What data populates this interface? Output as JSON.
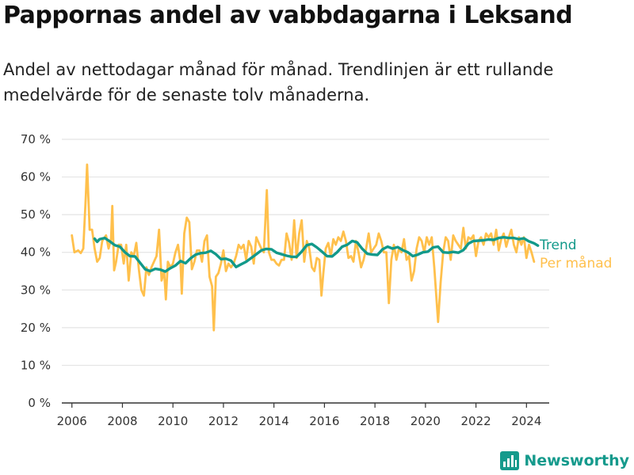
{
  "title": "Pappornas andel av vabbdagarna i Leksand",
  "subtitle": "Andel av nettodagar månad för månad. Trendlinjen är ett rullande medelvärde för de senaste tolv månaderna.",
  "brand": {
    "name": "Newsworthy",
    "icon": "newsworthy-logo-icon"
  },
  "colors": {
    "monthly": "#ffc04c",
    "trend": "#12998a",
    "grid": "#e4e4e4",
    "axis": "#333333"
  },
  "chart_data": {
    "type": "line",
    "title": "Pappornas andel av vabbdagarna i Leksand",
    "xlabel": "",
    "ylabel": "",
    "xlim": [
      2005.6,
      2024.9
    ],
    "ylim": [
      0,
      70
    ],
    "grid": true,
    "legend": "right",
    "x_ticks": [
      {
        "value": 2006,
        "label": "2006"
      },
      {
        "value": 2008,
        "label": "2008"
      },
      {
        "value": 2010,
        "label": "2010"
      },
      {
        "value": 2012,
        "label": "2012"
      },
      {
        "value": 2014,
        "label": "2014"
      },
      {
        "value": 2016,
        "label": "2016"
      },
      {
        "value": 2018,
        "label": "2018"
      },
      {
        "value": 2020,
        "label": "2020"
      },
      {
        "value": 2022,
        "label": "2022"
      },
      {
        "value": 2024,
        "label": "2024"
      }
    ],
    "y_ticks": [
      {
        "value": 0,
        "label": "0 %"
      },
      {
        "value": 10,
        "label": "10 %"
      },
      {
        "value": 20,
        "label": "20 %"
      },
      {
        "value": 30,
        "label": "30 %"
      },
      {
        "value": 40,
        "label": "40 %"
      },
      {
        "value": 50,
        "label": "50 %"
      },
      {
        "value": 60,
        "label": "60 %"
      },
      {
        "value": 70,
        "label": "70 %"
      }
    ],
    "series": [
      {
        "name": "Per månad",
        "color": "#ffc04c",
        "points": [
          [
            2006.0,
            44.5
          ],
          [
            2006.1,
            40
          ],
          [
            2006.25,
            40.5
          ],
          [
            2006.35,
            39.8
          ],
          [
            2006.45,
            41
          ],
          [
            2006.55,
            55
          ],
          [
            2006.6,
            63.3
          ],
          [
            2006.7,
            46
          ],
          [
            2006.8,
            46
          ],
          [
            2006.9,
            41
          ],
          [
            2007.0,
            37.5
          ],
          [
            2007.1,
            38.5
          ],
          [
            2007.2,
            43
          ],
          [
            2007.35,
            44.5
          ],
          [
            2007.45,
            41
          ],
          [
            2007.55,
            43.5
          ],
          [
            2007.6,
            52.3
          ],
          [
            2007.67,
            35.2
          ],
          [
            2007.75,
            37.5
          ],
          [
            2007.85,
            42
          ],
          [
            2007.95,
            42
          ],
          [
            2008.05,
            37
          ],
          [
            2008.15,
            42
          ],
          [
            2008.25,
            32.5
          ],
          [
            2008.35,
            40
          ],
          [
            2008.45,
            39
          ],
          [
            2008.55,
            42.5
          ],
          [
            2008.65,
            35.5
          ],
          [
            2008.75,
            30
          ],
          [
            2008.85,
            28.5
          ],
          [
            2008.95,
            36
          ],
          [
            2009.05,
            34
          ],
          [
            2009.15,
            36
          ],
          [
            2009.25,
            37.5
          ],
          [
            2009.35,
            39
          ],
          [
            2009.45,
            46
          ],
          [
            2009.55,
            32.5
          ],
          [
            2009.65,
            35
          ],
          [
            2009.72,
            27.5
          ],
          [
            2009.8,
            37.5
          ],
          [
            2009.9,
            36
          ],
          [
            2010.0,
            37
          ],
          [
            2010.1,
            40
          ],
          [
            2010.2,
            42
          ],
          [
            2010.3,
            37
          ],
          [
            2010.35,
            29
          ],
          [
            2010.45,
            45
          ],
          [
            2010.55,
            49.2
          ],
          [
            2010.65,
            48
          ],
          [
            2010.75,
            35.5
          ],
          [
            2010.85,
            37.5
          ],
          [
            2010.95,
            40.5
          ],
          [
            2011.05,
            40.5
          ],
          [
            2011.15,
            37.5
          ],
          [
            2011.25,
            43
          ],
          [
            2011.35,
            44.5
          ],
          [
            2011.45,
            33.5
          ],
          [
            2011.55,
            31
          ],
          [
            2011.62,
            19.3
          ],
          [
            2011.7,
            33.5
          ],
          [
            2011.8,
            34.5
          ],
          [
            2011.9,
            37
          ],
          [
            2012.0,
            40.5
          ],
          [
            2012.1,
            35
          ],
          [
            2012.2,
            37
          ],
          [
            2012.3,
            36
          ],
          [
            2012.4,
            37
          ],
          [
            2012.5,
            39
          ],
          [
            2012.6,
            42
          ],
          [
            2012.7,
            41
          ],
          [
            2012.8,
            42
          ],
          [
            2012.9,
            38
          ],
          [
            2013.0,
            43
          ],
          [
            2013.1,
            41.5
          ],
          [
            2013.2,
            37
          ],
          [
            2013.3,
            44
          ],
          [
            2013.4,
            42.5
          ],
          [
            2013.5,
            41
          ],
          [
            2013.6,
            40
          ],
          [
            2013.72,
            56.5
          ],
          [
            2013.8,
            40
          ],
          [
            2013.9,
            38
          ],
          [
            2014.0,
            38
          ],
          [
            2014.1,
            37
          ],
          [
            2014.2,
            36.5
          ],
          [
            2014.3,
            38
          ],
          [
            2014.4,
            38
          ],
          [
            2014.5,
            45
          ],
          [
            2014.6,
            42.5
          ],
          [
            2014.7,
            38
          ],
          [
            2014.8,
            48.5
          ],
          [
            2014.9,
            38.5
          ],
          [
            2015.0,
            45
          ],
          [
            2015.1,
            48.5
          ],
          [
            2015.2,
            37.5
          ],
          [
            2015.3,
            43
          ],
          [
            2015.4,
            41
          ],
          [
            2015.5,
            36
          ],
          [
            2015.6,
            35
          ],
          [
            2015.7,
            38.5
          ],
          [
            2015.8,
            38
          ],
          [
            2015.88,
            28.5
          ],
          [
            2015.95,
            34
          ],
          [
            2016.05,
            41
          ],
          [
            2016.15,
            42.5
          ],
          [
            2016.25,
            39
          ],
          [
            2016.35,
            43.5
          ],
          [
            2016.45,
            42
          ],
          [
            2016.55,
            44
          ],
          [
            2016.65,
            43
          ],
          [
            2016.75,
            45.5
          ],
          [
            2016.85,
            43
          ],
          [
            2016.95,
            38.5
          ],
          [
            2017.05,
            39
          ],
          [
            2017.15,
            37.5
          ],
          [
            2017.25,
            43
          ],
          [
            2017.35,
            40
          ],
          [
            2017.45,
            36
          ],
          [
            2017.55,
            38
          ],
          [
            2017.65,
            41
          ],
          [
            2017.75,
            45
          ],
          [
            2017.85,
            40
          ],
          [
            2017.95,
            41
          ],
          [
            2018.05,
            42
          ],
          [
            2018.15,
            45
          ],
          [
            2018.25,
            43
          ],
          [
            2018.35,
            40
          ],
          [
            2018.45,
            40
          ],
          [
            2018.55,
            26.5
          ],
          [
            2018.65,
            38
          ],
          [
            2018.75,
            42
          ],
          [
            2018.85,
            38
          ],
          [
            2018.95,
            41
          ],
          [
            2019.05,
            40
          ],
          [
            2019.15,
            43.5
          ],
          [
            2019.25,
            38
          ],
          [
            2019.35,
            39
          ],
          [
            2019.45,
            32.5
          ],
          [
            2019.55,
            35
          ],
          [
            2019.65,
            41
          ],
          [
            2019.75,
            44
          ],
          [
            2019.85,
            43
          ],
          [
            2019.95,
            40
          ],
          [
            2020.05,
            44
          ],
          [
            2020.15,
            42
          ],
          [
            2020.25,
            44
          ],
          [
            2020.35,
            36
          ],
          [
            2020.5,
            21.5
          ],
          [
            2020.6,
            32
          ],
          [
            2020.7,
            40
          ],
          [
            2020.8,
            44
          ],
          [
            2020.9,
            43
          ],
          [
            2021.0,
            38
          ],
          [
            2021.1,
            44.5
          ],
          [
            2021.2,
            43
          ],
          [
            2021.3,
            42
          ],
          [
            2021.4,
            41
          ],
          [
            2021.5,
            46.5
          ],
          [
            2021.6,
            41
          ],
          [
            2021.7,
            44
          ],
          [
            2021.8,
            43.5
          ],
          [
            2021.9,
            44.5
          ],
          [
            2022.0,
            39
          ],
          [
            2022.1,
            43
          ],
          [
            2022.2,
            44
          ],
          [
            2022.3,
            42
          ],
          [
            2022.4,
            45
          ],
          [
            2022.5,
            44
          ],
          [
            2022.6,
            45
          ],
          [
            2022.7,
            42
          ],
          [
            2022.8,
            46
          ],
          [
            2022.9,
            40.5
          ],
          [
            2023.0,
            43.5
          ],
          [
            2023.1,
            45
          ],
          [
            2023.2,
            41.5
          ],
          [
            2023.3,
            44
          ],
          [
            2023.4,
            46
          ],
          [
            2023.5,
            42
          ],
          [
            2023.6,
            40
          ],
          [
            2023.7,
            44
          ],
          [
            2023.8,
            42
          ],
          [
            2023.9,
            44
          ],
          [
            2024.0,
            38.5
          ],
          [
            2024.1,
            42
          ],
          [
            2024.2,
            40
          ],
          [
            2024.3,
            37.5
          ]
        ]
      },
      {
        "name": "Trend",
        "color": "#12998a",
        "points": [
          [
            2006.9,
            43.6
          ],
          [
            2007.0,
            42.8
          ],
          [
            2007.1,
            43.5
          ],
          [
            2007.3,
            43.8
          ],
          [
            2007.5,
            42.9
          ],
          [
            2007.7,
            41.9
          ],
          [
            2007.9,
            41.5
          ],
          [
            2008.1,
            40.0
          ],
          [
            2008.3,
            39.0
          ],
          [
            2008.5,
            38.9
          ],
          [
            2008.7,
            37.2
          ],
          [
            2008.9,
            35.5
          ],
          [
            2009.1,
            35.0
          ],
          [
            2009.3,
            35.6
          ],
          [
            2009.5,
            35.4
          ],
          [
            2009.7,
            34.9
          ],
          [
            2009.9,
            35.8
          ],
          [
            2010.1,
            36.5
          ],
          [
            2010.3,
            37.7
          ],
          [
            2010.5,
            37.1
          ],
          [
            2010.7,
            38.4
          ],
          [
            2010.9,
            39.4
          ],
          [
            2011.1,
            39.8
          ],
          [
            2011.3,
            39.9
          ],
          [
            2011.5,
            40.4
          ],
          [
            2011.7,
            39.5
          ],
          [
            2011.9,
            38.2
          ],
          [
            2012.1,
            38.3
          ],
          [
            2012.3,
            37.8
          ],
          [
            2012.5,
            36.1
          ],
          [
            2012.7,
            36.8
          ],
          [
            2012.9,
            37.5
          ],
          [
            2013.1,
            38.5
          ],
          [
            2013.3,
            39.5
          ],
          [
            2013.5,
            40.5
          ],
          [
            2013.7,
            40.9
          ],
          [
            2013.9,
            40.8
          ],
          [
            2014.1,
            39.9
          ],
          [
            2014.3,
            39.5
          ],
          [
            2014.5,
            39.1
          ],
          [
            2014.7,
            38.8
          ],
          [
            2014.9,
            38.8
          ],
          [
            2015.1,
            40.2
          ],
          [
            2015.3,
            41.9
          ],
          [
            2015.5,
            42.2
          ],
          [
            2015.7,
            41.3
          ],
          [
            2015.9,
            40.2
          ],
          [
            2016.1,
            39.0
          ],
          [
            2016.3,
            38.9
          ],
          [
            2016.5,
            40.0
          ],
          [
            2016.7,
            41.5
          ],
          [
            2016.9,
            42.0
          ],
          [
            2017.1,
            43.0
          ],
          [
            2017.3,
            42.6
          ],
          [
            2017.5,
            40.9
          ],
          [
            2017.7,
            39.6
          ],
          [
            2017.9,
            39.4
          ],
          [
            2018.1,
            39.3
          ],
          [
            2018.3,
            40.8
          ],
          [
            2018.5,
            41.5
          ],
          [
            2018.7,
            41.0
          ],
          [
            2018.9,
            41.4
          ],
          [
            2019.1,
            40.6
          ],
          [
            2019.3,
            40.0
          ],
          [
            2019.5,
            39.0
          ],
          [
            2019.7,
            39.4
          ],
          [
            2019.9,
            40.0
          ],
          [
            2020.1,
            40.2
          ],
          [
            2020.3,
            41.3
          ],
          [
            2020.5,
            41.5
          ],
          [
            2020.7,
            40.0
          ],
          [
            2020.9,
            39.9
          ],
          [
            2021.1,
            40.1
          ],
          [
            2021.3,
            39.9
          ],
          [
            2021.5,
            40.6
          ],
          [
            2021.7,
            42.3
          ],
          [
            2021.9,
            43.0
          ],
          [
            2022.1,
            43.1
          ],
          [
            2022.3,
            43.2
          ],
          [
            2022.5,
            43.4
          ],
          [
            2022.7,
            43.3
          ],
          [
            2022.9,
            43.8
          ],
          [
            2023.1,
            44.0
          ],
          [
            2023.3,
            43.8
          ],
          [
            2023.5,
            43.8
          ],
          [
            2023.7,
            43.5
          ],
          [
            2023.9,
            43.7
          ],
          [
            2024.1,
            42.9
          ],
          [
            2024.3,
            42.4
          ],
          [
            2024.45,
            41.8
          ]
        ]
      }
    ]
  }
}
